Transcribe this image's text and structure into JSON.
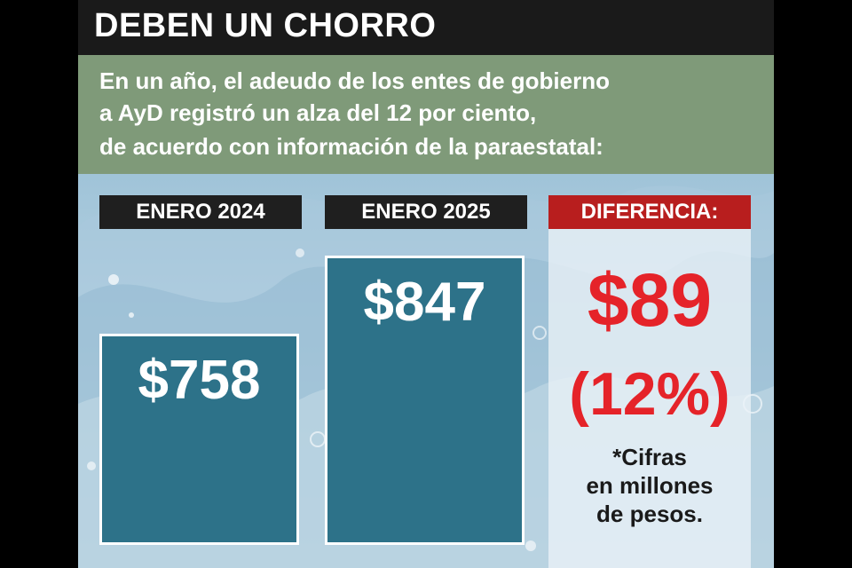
{
  "header": {
    "title": "DEBEN UN CHORRO",
    "lead": [
      "En un año, el adeudo de los entes de gobierno",
      "a AyD registró un alza del 12 por ciento,",
      "de acuerdo con información de la paraestatal:"
    ]
  },
  "chart_data": {
    "type": "bar",
    "categories": [
      "ENERO 2024",
      "ENERO 2025"
    ],
    "values": [
      758,
      847
    ],
    "value_labels": [
      "$758",
      "$847"
    ],
    "title": "",
    "xlabel": "",
    "ylabel": "",
    "unit_note": "*Cifras en millones de pesos."
  },
  "difference": {
    "label": "DIFERENCIA:",
    "amount": "$89",
    "percent": "(12%)"
  },
  "note_lines": [
    "*Cifras",
    "en millones",
    "de pesos."
  ],
  "colors": {
    "title_bg": "#1a1a1a",
    "subtitle_bg": "#7f9a79",
    "bar_fill": "#2d7289",
    "difference_label_bg": "#b81e1e",
    "difference_text": "#e52329"
  }
}
